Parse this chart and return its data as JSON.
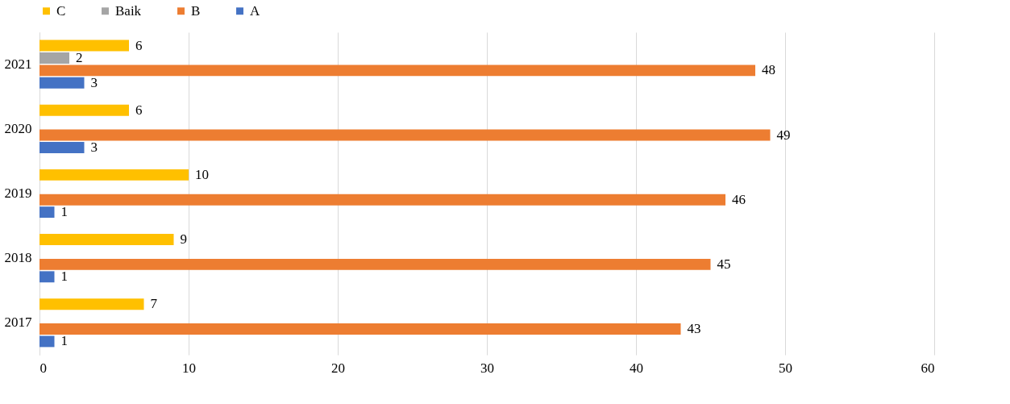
{
  "chart_data": {
    "type": "bar",
    "orientation": "horizontal",
    "categories": [
      "2021",
      "2020",
      "2019",
      "2018",
      "2017"
    ],
    "series": [
      {
        "name": "C",
        "color": "#ffc000",
        "values": [
          6,
          6,
          10,
          9,
          7
        ]
      },
      {
        "name": "Baik",
        "color": "#a5a5a5",
        "values": [
          2,
          null,
          null,
          null,
          null
        ]
      },
      {
        "name": "B",
        "color": "#ed7d31",
        "values": [
          48,
          49,
          46,
          45,
          43
        ]
      },
      {
        "name": "A",
        "color": "#4472c4",
        "values": [
          3,
          3,
          1,
          1,
          1
        ]
      }
    ],
    "xlim": [
      0,
      60
    ],
    "xticks": [
      0,
      10,
      20,
      30,
      40,
      50,
      60
    ],
    "grid": "x",
    "legend": "top",
    "data_labels": true
  }
}
